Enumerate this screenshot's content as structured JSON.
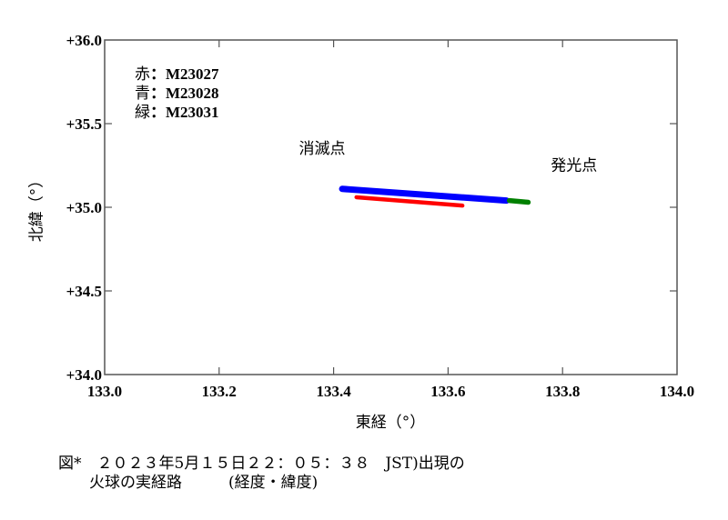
{
  "chart_data": {
    "type": "scatter",
    "title": "",
    "xlabel": "東経（°）",
    "ylabel": "北緯（°）",
    "xlim": [
      133.0,
      134.0
    ],
    "ylim": [
      34.0,
      36.0
    ],
    "x_ticks": [
      "133.0",
      "133.2",
      "133.4",
      "133.6",
      "133.8",
      "134.0"
    ],
    "y_ticks": [
      "+34.0",
      "+34.5",
      "+35.0",
      "+35.5",
      "+36.0"
    ],
    "grid": false,
    "legend_position": "upper-left",
    "legend": [
      {
        "key": "赤",
        "sep": "：",
        "label": "M23027",
        "color": "#ff0000"
      },
      {
        "key": "青",
        "sep": "：",
        "label": "M23028",
        "color": "#0000ff"
      },
      {
        "key": "緑",
        "sep": "：",
        "label": "M23031",
        "color": "#008000"
      }
    ],
    "series": [
      {
        "name": "M23028",
        "color": "#0000ff",
        "x": [
          133.415,
          133.702
        ],
        "y": [
          35.11,
          35.04
        ]
      },
      {
        "name": "M23027",
        "color": "#ff0000",
        "x": [
          133.44,
          133.625
        ],
        "y": [
          35.06,
          35.01
        ]
      },
      {
        "name": "M23031",
        "color": "#008000",
        "x": [
          133.707,
          133.74
        ],
        "y": [
          35.04,
          35.03
        ]
      }
    ],
    "annotations": [
      {
        "text": "消滅点",
        "x": 133.38,
        "y": 35.32
      },
      {
        "text": "発光点",
        "x": 133.82,
        "y": 35.22
      }
    ]
  },
  "caption": {
    "line1": "図*　２０２３年5月１５日２２：０５：３８　JST)出現の",
    "line2": "　　火球の実経路　　　(経度・緯度)"
  }
}
